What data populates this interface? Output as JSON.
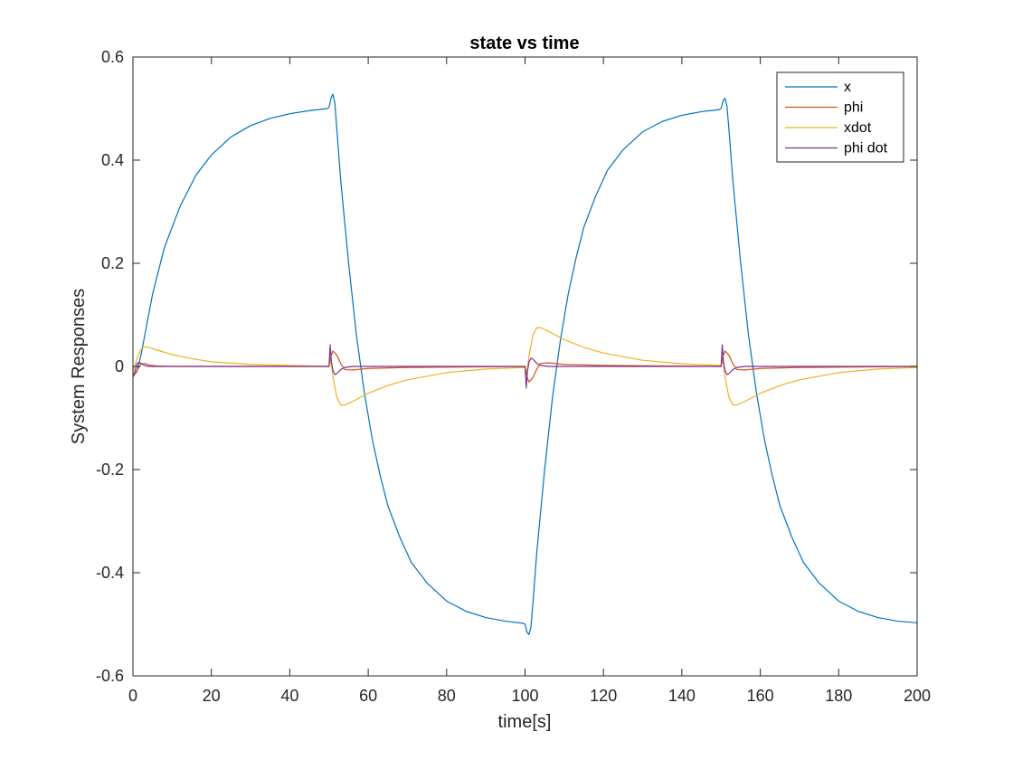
{
  "chart_data": {
    "type": "line",
    "title": "state vs time",
    "xlabel": "time[s]",
    "ylabel": "System Responses",
    "xlim": [
      0,
      200
    ],
    "ylim": [
      -0.6,
      0.6
    ],
    "xticks": [
      0,
      20,
      40,
      60,
      80,
      100,
      120,
      140,
      160,
      180,
      200
    ],
    "yticks": [
      -0.6,
      -0.4,
      -0.2,
      0,
      0.2,
      0.4,
      0.6
    ],
    "xtick_labels": [
      "0",
      "20",
      "40",
      "60",
      "80",
      "100",
      "120",
      "140",
      "160",
      "180",
      "200"
    ],
    "ytick_labels": [
      "-0.6",
      "-0.4",
      "-0.2",
      "0",
      "0.2",
      "0.4",
      "0.6"
    ],
    "grid": false,
    "legend_position": "top-right",
    "series": [
      {
        "name": "x",
        "color": "#0072BD",
        "x": [
          0,
          1,
          2,
          3,
          5,
          8,
          12,
          16,
          20,
          25,
          30,
          35,
          40,
          45,
          49.5,
          50,
          50.5,
          51,
          51.5,
          52,
          53,
          55,
          57,
          59,
          61,
          63,
          65,
          68,
          71,
          75,
          80,
          85,
          90,
          95,
          99.5,
          100,
          100.5,
          101,
          101.5,
          102,
          103,
          105,
          107,
          109,
          111,
          113,
          115,
          118,
          121,
          125,
          130,
          135,
          140,
          145,
          149.5,
          150,
          150.5,
          151,
          151.5,
          152,
          153,
          155,
          157,
          159,
          161,
          163,
          165,
          168,
          171,
          175,
          180,
          185,
          190,
          195,
          200
        ],
        "values": [
          -0.02,
          -0.01,
          0.02,
          0.06,
          0.14,
          0.23,
          0.31,
          0.37,
          0.41,
          0.445,
          0.467,
          0.481,
          0.49,
          0.496,
          0.5,
          0.502,
          0.52,
          0.528,
          0.51,
          0.46,
          0.36,
          0.2,
          0.06,
          -0.05,
          -0.14,
          -0.21,
          -0.27,
          -0.33,
          -0.38,
          -0.42,
          -0.455,
          -0.475,
          -0.487,
          -0.494,
          -0.498,
          -0.5,
          -0.515,
          -0.52,
          -0.505,
          -0.46,
          -0.36,
          -0.2,
          -0.06,
          0.05,
          0.14,
          0.21,
          0.27,
          0.33,
          0.38,
          0.42,
          0.455,
          0.475,
          0.487,
          0.494,
          0.498,
          0.5,
          0.515,
          0.52,
          0.505,
          0.46,
          0.36,
          0.2,
          0.06,
          -0.05,
          -0.14,
          -0.21,
          -0.27,
          -0.33,
          -0.38,
          -0.42,
          -0.455,
          -0.475,
          -0.487,
          -0.494,
          -0.497
        ]
      },
      {
        "name": "phi",
        "color": "#D95319",
        "x": [
          0,
          0.5,
          1,
          2,
          3,
          4,
          6,
          10,
          50,
          50.5,
          51,
          52,
          53,
          54,
          56,
          60,
          70,
          100,
          100.5,
          101,
          102,
          103,
          104,
          106,
          110,
          120,
          150,
          150.5,
          151,
          152,
          153,
          154,
          156,
          160,
          170,
          200
        ],
        "values": [
          -0.02,
          -0.015,
          -0.008,
          0.004,
          0.006,
          0.003,
          0.001,
          0,
          0,
          0.02,
          0.03,
          0.022,
          0.005,
          -0.006,
          -0.007,
          -0.004,
          -0.002,
          0,
          -0.02,
          -0.03,
          -0.022,
          -0.005,
          0.006,
          0.007,
          0.004,
          0.002,
          0,
          0.02,
          0.03,
          0.022,
          0.005,
          -0.006,
          -0.007,
          -0.004,
          -0.002,
          0
        ]
      },
      {
        "name": "xdot",
        "color": "#EDB120",
        "x": [
          0,
          1,
          2,
          3,
          4,
          6,
          10,
          15,
          20,
          30,
          40,
          50,
          50.5,
          51,
          52,
          53,
          54,
          56,
          60,
          65,
          70,
          80,
          90,
          100,
          100.5,
          101,
          102,
          103,
          104,
          106,
          110,
          115,
          120,
          130,
          140,
          150,
          150.5,
          151,
          152,
          153,
          154,
          156,
          160,
          165,
          170,
          180,
          190,
          200
        ],
        "values": [
          -0.01,
          0.015,
          0.033,
          0.038,
          0.037,
          0.032,
          0.023,
          0.015,
          0.009,
          0.004,
          0.002,
          0,
          0.01,
          -0.02,
          -0.06,
          -0.075,
          -0.075,
          -0.068,
          -0.052,
          -0.037,
          -0.026,
          -0.012,
          -0.005,
          -0.002,
          -0.01,
          0.02,
          0.06,
          0.075,
          0.075,
          0.068,
          0.052,
          0.037,
          0.026,
          0.012,
          0.005,
          0.002,
          0.01,
          -0.02,
          -0.06,
          -0.075,
          -0.075,
          -0.068,
          -0.052,
          -0.037,
          -0.026,
          -0.012,
          -0.005,
          -0.002
        ]
      },
      {
        "name": "phi dot",
        "color": "#7E2F8E",
        "x": [
          0,
          0.5,
          1,
          1.5,
          2,
          3,
          4,
          6,
          50,
          50.3,
          50.6,
          51,
          51.5,
          52,
          53,
          54,
          56,
          60,
          100,
          100.3,
          100.6,
          101,
          101.5,
          102,
          103,
          104,
          106,
          110,
          150,
          150.3,
          150.6,
          151,
          151.5,
          152,
          153,
          154,
          156,
          160,
          200
        ],
        "values": [
          -0.02,
          -0.01,
          0.005,
          0.008,
          0.006,
          0.002,
          0,
          0,
          0,
          0.042,
          0.01,
          -0.008,
          -0.016,
          -0.014,
          -0.006,
          -0.002,
          0,
          0,
          0,
          -0.042,
          -0.01,
          0.008,
          0.016,
          0.014,
          0.006,
          0.002,
          0,
          0,
          0,
          0.042,
          0.01,
          -0.008,
          -0.016,
          -0.014,
          -0.006,
          -0.002,
          0,
          0,
          0
        ]
      }
    ]
  }
}
